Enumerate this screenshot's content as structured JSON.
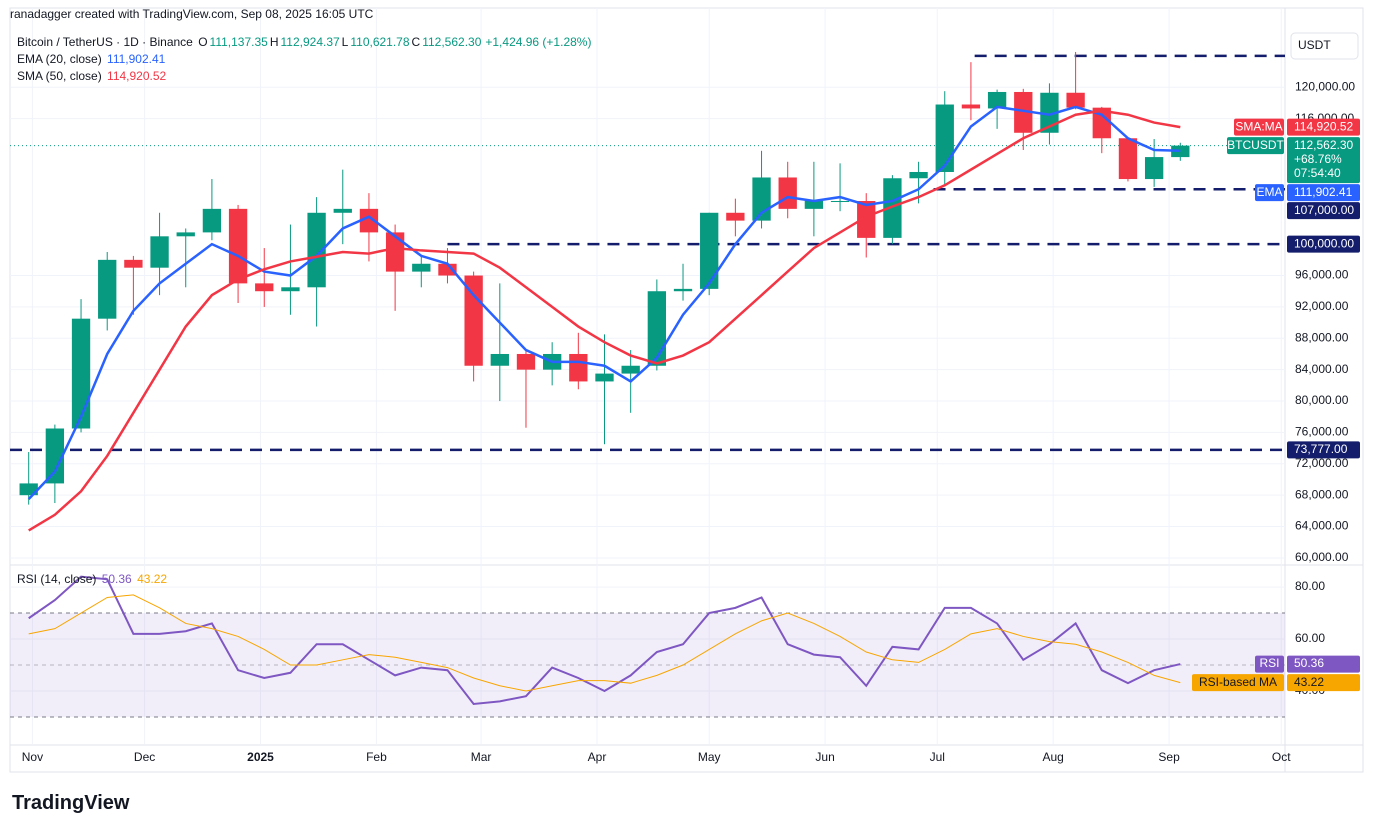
{
  "header": "ranadagger created with TradingView.com, Sep 08, 2025 16:05 UTC",
  "brand": "TradingView",
  "chart_data": [
    {
      "type": "candlestick",
      "title": "Bitcoin / TetherUS · 1D · Binance",
      "currency": "USDT",
      "ohlc": [
        {
          "key": "O",
          "value": "111,137.35"
        },
        {
          "key": "H",
          "value": "112,924.37"
        },
        {
          "key": "L",
          "value": "110,621.78"
        },
        {
          "key": "C",
          "value": "112,562.30"
        }
      ],
      "change": "+1,424.96 (+1.28%)",
      "up_color": "#089981",
      "down_color": "#f23645",
      "x": [
        -1,
        6,
        13,
        20,
        27,
        34,
        41,
        48,
        55,
        62,
        69,
        76,
        83,
        90,
        97,
        104,
        111,
        118,
        125,
        132,
        139,
        146,
        153,
        160,
        167,
        174,
        181,
        188,
        195,
        202,
        209,
        216,
        223,
        230,
        237,
        244,
        251,
        258,
        265,
        272,
        279,
        286,
        293,
        300,
        307
      ],
      "open": [
        68000,
        69500,
        76500,
        90500,
        98000,
        97000,
        101000,
        101500,
        104500,
        95000,
        94000,
        94500,
        104000,
        104500,
        101500,
        96500,
        97500,
        96000,
        84500,
        86000,
        84000,
        86000,
        82500,
        83500,
        84500,
        94000,
        94300,
        104000,
        103000,
        108500,
        104500,
        105500,
        105500,
        100800,
        108400,
        109200,
        117800,
        117300,
        119400,
        114200,
        119300,
        117400,
        113500,
        108300,
        111100
      ],
      "high": [
        73500,
        77000,
        93000,
        99000,
        98500,
        104000,
        102000,
        108300,
        105000,
        99500,
        102500,
        106000,
        109500,
        106500,
        102500,
        98500,
        99500,
        96500,
        95000,
        86500,
        87500,
        88700,
        88500,
        86500,
        95500,
        97500,
        104000,
        105800,
        111900,
        110500,
        110500,
        110300,
        106500,
        108800,
        110500,
        119500,
        123200,
        119700,
        119800,
        120500,
        124500,
        117500,
        113600,
        113400,
        112924.37
      ],
      "low": [
        66800,
        67000,
        76000,
        89000,
        91000,
        93500,
        94500,
        100500,
        92500,
        92000,
        91000,
        89500,
        100000,
        97800,
        91500,
        94500,
        95000,
        82500,
        80000,
        76600,
        82000,
        81500,
        74500,
        78500,
        83900,
        92800,
        93500,
        101000,
        102000,
        103300,
        101000,
        104200,
        98300,
        100000,
        105200,
        107500,
        115800,
        114700,
        112000,
        112700,
        117200,
        111600,
        108000,
        107300,
        110621.78
      ],
      "close": [
        69500,
        76500,
        90500,
        98000,
        97000,
        101000,
        101500,
        104500,
        95000,
        94000,
        94500,
        104000,
        104500,
        101500,
        96500,
        97500,
        96000,
        84500,
        86000,
        84000,
        86000,
        82500,
        83500,
        84500,
        94000,
        94300,
        104000,
        103000,
        108500,
        104500,
        105500,
        105500,
        100800,
        108400,
        109200,
        117800,
        117300,
        119400,
        114200,
        119300,
        117400,
        113500,
        108300,
        111100,
        112562.3
      ],
      "price_tag": {
        "name": "BTCUSDT",
        "price": "112,562.30",
        "change": "+68.76%",
        "countdown": "07:54:40"
      },
      "series": [
        {
          "name": "EMA (20, close)",
          "tag": "EMA",
          "last_label": "111,902.41",
          "color": "#2962ff",
          "values": [
            67500,
            71000,
            78000,
            86000,
            91500,
            95000,
            97500,
            100000,
            98500,
            96500,
            96000,
            98500,
            102000,
            103500,
            101000,
            98500,
            97500,
            93500,
            90000,
            86500,
            85000,
            85000,
            84500,
            82500,
            85500,
            91000,
            95000,
            100000,
            104000,
            106000,
            105500,
            106000,
            105000,
            105500,
            107000,
            110000,
            115000,
            117500,
            117000,
            116500,
            117500,
            116500,
            113500,
            112000,
            111902.41
          ]
        },
        {
          "name": "SMA (50, close)",
          "tag": "SMA:MA",
          "last_label": "114,920.52",
          "color": "#f23645",
          "values": [
            63500,
            65500,
            68500,
            73000,
            78500,
            84000,
            89500,
            93500,
            95500,
            96800,
            97800,
            98400,
            99000,
            98800,
            99500,
            99200,
            99000,
            98800,
            97000,
            94500,
            92000,
            89500,
            87500,
            85800,
            84800,
            85800,
            87500,
            90500,
            93500,
            96500,
            99500,
            101500,
            103500,
            104800,
            106000,
            107500,
            109500,
            111500,
            113500,
            115000,
            116500,
            117000,
            116500,
            115500,
            114920.52
          ]
        }
      ],
      "levels": [
        {
          "value": 124000,
          "start": 252
        },
        {
          "value": 107000,
          "label": "107,000.00",
          "start": 241
        },
        {
          "value": 100000,
          "label": "100,000.00",
          "start": 111
        },
        {
          "value": 73777,
          "label": "73,777.00",
          "start": -6
        }
      ],
      "level_color": "#131d6b",
      "xlim": [
        -6,
        335
      ],
      "xticks": [
        {
          "value": 0,
          "label": "Nov"
        },
        {
          "value": 30,
          "label": "Dec"
        },
        {
          "value": 61,
          "label": "2025"
        },
        {
          "value": 92,
          "label": "Feb"
        },
        {
          "value": 120,
          "label": "Mar"
        },
        {
          "value": 151,
          "label": "Apr"
        },
        {
          "value": 181,
          "label": "May"
        },
        {
          "value": 212,
          "label": "Jun"
        },
        {
          "value": 242,
          "label": "Jul"
        },
        {
          "value": 273,
          "label": "Aug"
        },
        {
          "value": 304,
          "label": "Sep"
        },
        {
          "value": 334,
          "label": "Oct"
        }
      ],
      "ylim": [
        59100,
        127300
      ],
      "yticks": [
        {
          "value": 60000,
          "label": "60,000.00"
        },
        {
          "value": 64000,
          "label": "64,000.00"
        },
        {
          "value": 68000,
          "label": "68,000.00"
        },
        {
          "value": 72000,
          "label": "72,000.00"
        },
        {
          "value": 76000,
          "label": "76,000.00"
        },
        {
          "value": 80000,
          "label": "80,000.00"
        },
        {
          "value": 84000,
          "label": "84,000.00"
        },
        {
          "value": 88000,
          "label": "88,000.00"
        },
        {
          "value": 92000,
          "label": "92,000.00"
        },
        {
          "value": 96000,
          "label": "96,000.00"
        },
        {
          "value": 116000,
          "label": "116,000.00"
        },
        {
          "value": 120000,
          "label": "120,000.00"
        }
      ],
      "grid": true
    },
    {
      "type": "line",
      "title": "RSI (14, close)",
      "series": [
        {
          "name": "RSI",
          "tag": "RSI",
          "last_label": "50.36",
          "color": "#7e57c2",
          "values": [
            68,
            75,
            84,
            83,
            62,
            62,
            63,
            66,
            48,
            45,
            47,
            58,
            58,
            52,
            46,
            49,
            48,
            35,
            36,
            38,
            49,
            45,
            40,
            46,
            55,
            58,
            70,
            72,
            76,
            58,
            54,
            53,
            42,
            57,
            56,
            72,
            72,
            66,
            52,
            58,
            66,
            48,
            43,
            48,
            50.36
          ]
        },
        {
          "name": "RSI-based MA",
          "tag": "RSI-based MA",
          "last_label": "43.22",
          "color": "#f7a600",
          "values": [
            62,
            64,
            70,
            76,
            77,
            72,
            66,
            64,
            61,
            56,
            50,
            50,
            52,
            54,
            53,
            51,
            49,
            45,
            42,
            40,
            42,
            44,
            44,
            43,
            46,
            50,
            56,
            62,
            67,
            70,
            66,
            61,
            55,
            52,
            51,
            56,
            62,
            64,
            61,
            59,
            58,
            55,
            51,
            46,
            43.22
          ]
        }
      ],
      "bands": {
        "upper": 70,
        "middle": 50,
        "lower": 30
      },
      "ylim": [
        19.2,
        88.5
      ],
      "yticks": [
        {
          "value": 40,
          "label": "40.00"
        },
        {
          "value": 60,
          "label": "60.00"
        },
        {
          "value": 80,
          "label": "80.00"
        }
      ],
      "grid": true
    }
  ]
}
